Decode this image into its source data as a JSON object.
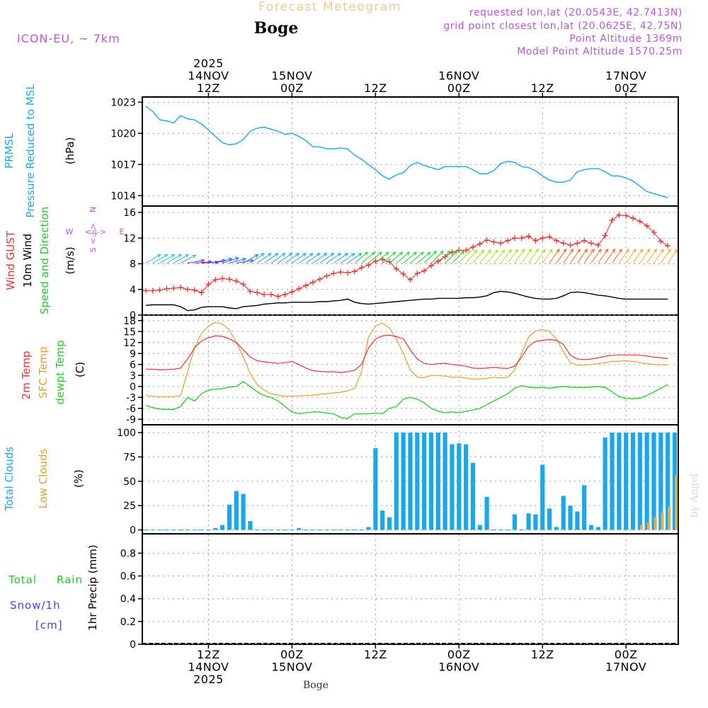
{
  "header": {
    "app_title": "Forecast Meteogram",
    "location": "Boge",
    "model": "ICON-EU, ~ 7km",
    "requested": "requested lon,lat (20.0543E, 42.7413N)",
    "grid_point": "grid point closest lon,lat (20.0625E, 42.75N)",
    "point_altitude": "Point Altitude 1369m",
    "model_altitude": "Model Point Altitude 1570.25m",
    "footer_location": "Boge",
    "watermark": "by Angel"
  },
  "colors": {
    "pressure": "#1aa7ec",
    "gust": "#ee3333",
    "wind": "#000000",
    "dir": "#22cc22",
    "temp": "#ee3333",
    "sfc": "#e0a030",
    "dewpt": "#22cc22",
    "total_clouds": "#1aa7ec",
    "low_clouds": "#e0b050",
    "rain": "#22cc22",
    "snow": "#4444ee",
    "purple": "#bb55dd"
  },
  "time_axis": {
    "hours": 77,
    "top_labels": [
      {
        "hour": 9,
        "lines": [
          "2025",
          "14NOV",
          "12Z"
        ]
      },
      {
        "hour": 21,
        "lines": [
          "15NOV",
          "00Z"
        ]
      },
      {
        "hour": 33,
        "lines": [
          "12Z"
        ]
      },
      {
        "hour": 45,
        "lines": [
          "16NOV",
          "00Z"
        ]
      },
      {
        "hour": 57,
        "lines": [
          "12Z"
        ]
      },
      {
        "hour": 69,
        "lines": [
          "17NOV",
          "00Z"
        ]
      }
    ],
    "bottom_labels": [
      {
        "hour": 9,
        "lines": [
          "12Z",
          "14NOV",
          "2025"
        ]
      },
      {
        "hour": 21,
        "lines": [
          "00Z",
          "15NOV"
        ]
      },
      {
        "hour": 33,
        "lines": [
          "12Z"
        ]
      },
      {
        "hour": 45,
        "lines": [
          "00Z",
          "16NOV"
        ]
      },
      {
        "hour": 57,
        "lines": [
          "12Z"
        ]
      },
      {
        "hour": 69,
        "lines": [
          "00Z",
          "17NOV"
        ]
      }
    ]
  },
  "panels": {
    "pressure": {
      "label1": "PRMSL",
      "label2": "Pressure Reduced to MSL",
      "unit": "(hPa)",
      "ticks": [
        "1014",
        "1017",
        "1020",
        "1023"
      ]
    },
    "wind": {
      "gust_label": "Wind GUST",
      "wind_label": "10m Wind",
      "dir_label": "Speed and Direction",
      "unit": "(m/s)",
      "compass_w": "W",
      "compass_e": "E",
      "compass_n": "N",
      "compass_s": "S",
      "compass_h": "<-|->",
      "compass_v": "<-|->",
      "ticks": [
        "0",
        "4",
        "8",
        "12",
        "16"
      ]
    },
    "temp": {
      "t2m_label": "2m Temp",
      "sfc_label": "SFC Temp",
      "dew_label": "dewpt Temp",
      "unit": "(C)",
      "ticks": [
        "-9",
        "-6",
        "-3",
        "0",
        "3",
        "6",
        "9",
        "12",
        "15",
        "18"
      ]
    },
    "clouds": {
      "total_label": "Total Clouds",
      "low_label": "Low Clouds",
      "unit": "(%)",
      "ticks": [
        "0",
        "25",
        "50",
        "75",
        "100"
      ]
    },
    "precip": {
      "rain_label_a": "Total",
      "rain_label_b": "Rain",
      "snow_label": "Snow/1h",
      "snow_unit": "[cm]",
      "unit_label": "1hr Precip (mm)",
      "ticks": [
        "0",
        "0.2",
        "0.4",
        "0.6",
        "0.8"
      ]
    }
  },
  "chart_data": [
    {
      "type": "line",
      "title": "PRMSL Pressure Reduced to MSL",
      "ylabel": "hPa",
      "ylim": [
        1013,
        1023.5
      ],
      "x_start_hour": 0,
      "x_step_hours": 1,
      "series": [
        {
          "name": "PRMSL",
          "values": [
            1022.6,
            1022.1,
            1021.3,
            1021.2,
            1021.0,
            1021.7,
            1021.4,
            1021.3,
            1020.9,
            1020.3,
            1019.7,
            1019.1,
            1018.9,
            1019.0,
            1019.4,
            1020.2,
            1020.5,
            1020.6,
            1020.4,
            1020.2,
            1019.9,
            1020.0,
            1019.7,
            1019.3,
            1018.7,
            1018.7,
            1018.5,
            1018.5,
            1018.6,
            1018.5,
            1017.9,
            1017.5,
            1017.0,
            1016.5,
            1015.9,
            1015.6,
            1016.0,
            1016.2,
            1016.9,
            1017.2,
            1016.9,
            1016.7,
            1016.5,
            1016.8,
            1016.8,
            1016.8,
            1016.8,
            1016.5,
            1016.1,
            1016.1,
            1016.4,
            1017.1,
            1017.3,
            1017.2,
            1016.8,
            1016.7,
            1016.4,
            1015.9,
            1015.5,
            1015.3,
            1015.3,
            1015.5,
            1016.3,
            1016.5,
            1016.6,
            1016.6,
            1016.3,
            1015.9,
            1015.9,
            1015.7,
            1015.4,
            1014.9,
            1014.4,
            1014.2,
            1014.0,
            1013.8
          ]
        }
      ]
    },
    {
      "type": "line",
      "title": "Wind GUST / 10m Wind Speed and Direction",
      "ylabel": "m/s",
      "ylim": [
        0,
        17
      ],
      "x_start_hour": 0,
      "x_step_hours": 1,
      "series": [
        {
          "name": "Wind GUST",
          "marker": "+",
          "values": [
            3.8,
            3.8,
            3.9,
            4.1,
            4.2,
            4.3,
            4.0,
            3.9,
            3.5,
            4.8,
            5.5,
            5.7,
            5.6,
            5.3,
            4.8,
            3.7,
            3.5,
            3.2,
            3.2,
            2.9,
            3.2,
            3.6,
            4.1,
            4.6,
            5.1,
            5.6,
            6.1,
            6.5,
            6.7,
            6.6,
            6.8,
            7.4,
            7.8,
            8.4,
            8.7,
            8.3,
            7.2,
            6.4,
            5.5,
            6.5,
            6.9,
            7.7,
            8.4,
            9.1,
            9.8,
            10.1,
            10.1,
            10.6,
            11.1,
            11.7,
            11.4,
            11.2,
            11.6,
            12.0,
            12.0,
            12.3,
            11.6,
            12.0,
            12.2,
            11.6,
            11.2,
            10.9,
            11.2,
            11.6,
            11.2,
            10.9,
            12.4,
            14.8,
            15.6,
            15.5,
            15.1,
            14.6,
            13.9,
            12.9,
            11.5,
            10.8
          ]
        },
        {
          "name": "10m Wind",
          "values": [
            1.5,
            1.6,
            1.6,
            1.6,
            1.6,
            1.3,
            0.7,
            0.8,
            1.2,
            1.3,
            1.3,
            1.3,
            1.1,
            1.0,
            1.3,
            1.4,
            1.5,
            1.7,
            1.8,
            1.9,
            1.9,
            2.0,
            2.0,
            2.0,
            2.0,
            2.1,
            2.1,
            2.2,
            2.3,
            2.5,
            2.0,
            1.8,
            1.7,
            1.8,
            1.9,
            2.0,
            2.1,
            2.2,
            2.3,
            2.4,
            2.5,
            2.5,
            2.6,
            2.6,
            2.6,
            2.6,
            2.7,
            2.7,
            2.8,
            3.0,
            3.5,
            3.7,
            3.6,
            3.4,
            3.1,
            2.8,
            2.6,
            2.5,
            2.5,
            2.6,
            3.0,
            3.5,
            3.6,
            3.5,
            3.3,
            3.1,
            3.0,
            2.8,
            2.6,
            2.5,
            2.5,
            2.5,
            2.5,
            2.5,
            2.5,
            2.5
          ]
        },
        {
          "name": "Direction (deg to)",
          "values": [
            60,
            60,
            60,
            60,
            60,
            62,
            80,
            85,
            87,
            80,
            75,
            72,
            75,
            80,
            60,
            55,
            55,
            55,
            55,
            55,
            55,
            55,
            55,
            55,
            55,
            55,
            55,
            55,
            55,
            55,
            50,
            50,
            50,
            50,
            50,
            50,
            50,
            50,
            50,
            50,
            45,
            45,
            45,
            45,
            45,
            42,
            40,
            40,
            40,
            40,
            40,
            38,
            36,
            35,
            35,
            35,
            35,
            35,
            35,
            35,
            35,
            35,
            35,
            35,
            35,
            35,
            35,
            35,
            35,
            35,
            35,
            35,
            35,
            35,
            35,
            35
          ]
        }
      ]
    },
    {
      "type": "line",
      "title": "2m Temp / SFC Temp / dewpt Temp",
      "ylabel": "C",
      "ylim": [
        -10.5,
        19.5
      ],
      "x_start_hour": 0,
      "x_step_hours": 1,
      "series": [
        {
          "name": "2m Temp",
          "values": [
            4.7,
            4.7,
            4.5,
            4.6,
            4.7,
            5.0,
            7.5,
            10.5,
            12.5,
            13.3,
            13.8,
            13.7,
            13.0,
            12.0,
            10.0,
            8.0,
            7.0,
            6.7,
            6.5,
            6.3,
            6.5,
            6.8,
            6.0,
            5.0,
            4.3,
            4.1,
            4.0,
            4.0,
            3.8,
            4.0,
            4.4,
            6.0,
            10.5,
            13.0,
            13.8,
            14.0,
            13.6,
            13.0,
            10.0,
            7.5,
            6.3,
            6.0,
            6.2,
            6.3,
            6.0,
            5.8,
            5.5,
            5.0,
            4.9,
            5.0,
            5.2,
            5.0,
            4.9,
            5.5,
            8.0,
            11.0,
            12.3,
            12.6,
            12.8,
            12.6,
            11.5,
            8.5,
            7.5,
            7.3,
            7.5,
            7.8,
            8.2,
            8.5,
            8.6,
            8.6,
            8.6,
            8.5,
            8.3,
            8.0,
            7.8,
            7.6
          ]
        },
        {
          "name": "SFC Temp",
          "values": [
            -2.5,
            -2.7,
            -2.8,
            -2.8,
            -2.8,
            -2.5,
            4.0,
            10.5,
            14.5,
            16.5,
            17.5,
            17.0,
            15.5,
            12.0,
            8.0,
            3.5,
            0.5,
            -1.0,
            -2.0,
            -2.4,
            -2.7,
            -2.7,
            -2.6,
            -2.5,
            -2.4,
            -2.2,
            -2.0,
            -1.8,
            -1.6,
            -1.2,
            -0.5,
            4.0,
            13.5,
            16.5,
            17.3,
            16.0,
            13.0,
            9.0,
            4.5,
            2.5,
            2.4,
            3.0,
            3.0,
            2.8,
            2.5,
            2.5,
            2.3,
            2.0,
            2.0,
            2.2,
            2.5,
            2.3,
            2.5,
            4.5,
            9.0,
            13.5,
            15.2,
            15.5,
            15.0,
            13.0,
            9.5,
            6.5,
            5.8,
            5.8,
            6.0,
            6.2,
            6.5,
            6.8,
            6.9,
            7.0,
            6.8,
            6.5,
            6.2,
            6.0,
            5.9,
            5.9
          ]
        },
        {
          "name": "dewpt Temp",
          "values": [
            -5.2,
            -5.8,
            -6.2,
            -6.3,
            -6.3,
            -5.5,
            -3.0,
            -4.0,
            -2.0,
            -1.0,
            -0.8,
            -0.6,
            -0.2,
            0.0,
            1.3,
            0.0,
            -1.5,
            -2.5,
            -3.0,
            -4.0,
            -5.5,
            -7.0,
            -7.5,
            -7.2,
            -7.0,
            -7.0,
            -7.3,
            -7.5,
            -8.5,
            -8.8,
            -7.5,
            -7.5,
            -7.5,
            -7.3,
            -7.5,
            -6.0,
            -5.5,
            -3.5,
            -3.0,
            -3.5,
            -4.5,
            -6.0,
            -6.8,
            -7.2,
            -7.0,
            -7.2,
            -6.8,
            -6.5,
            -6.0,
            -5.0,
            -4.0,
            -3.0,
            -2.0,
            -0.5,
            0.2,
            -0.2,
            -0.4,
            -0.3,
            -0.5,
            -0.2,
            0.0,
            -0.2,
            -0.3,
            -0.3,
            -0.2,
            0.0,
            -0.3,
            -1.5,
            -2.8,
            -3.3,
            -3.4,
            -3.2,
            -2.5,
            -1.5,
            -0.5,
            0.5
          ]
        }
      ]
    },
    {
      "type": "bar",
      "title": "Total Clouds / Low Clouds",
      "ylabel": "%",
      "ylim": [
        -4,
        108
      ],
      "x_start_hour": 0,
      "x_step_hours": 1,
      "series": [
        {
          "name": "Total Clouds",
          "values": [
            0,
            0,
            0,
            0,
            0,
            0,
            0,
            0,
            0,
            0,
            2,
            5,
            26,
            40,
            37,
            9,
            0,
            0,
            0,
            0,
            0,
            0,
            2,
            0,
            0,
            0,
            0,
            0,
            0,
            0,
            0,
            0,
            3,
            84,
            20,
            13,
            100,
            100,
            100,
            100,
            100,
            100,
            100,
            100,
            88,
            89,
            88,
            69,
            5,
            34,
            0,
            0,
            0,
            16,
            0,
            17,
            16,
            67,
            22,
            3,
            35,
            25,
            19,
            46,
            5,
            3,
            95,
            100,
            100,
            100,
            100,
            100,
            100,
            100,
            100,
            100,
            100
          ]
        },
        {
          "name": "Low Clouds",
          "values": [
            0,
            0,
            0,
            0,
            0,
            0,
            0,
            0,
            0,
            0,
            0,
            0,
            0,
            0,
            0,
            0,
            0,
            0,
            0,
            0,
            0,
            0,
            0,
            0,
            0,
            0,
            0,
            0,
            0,
            0,
            0,
            0,
            0,
            0,
            0,
            0,
            0,
            0,
            0,
            0,
            0,
            0,
            0,
            0,
            0,
            0,
            0,
            0,
            0,
            0,
            0,
            0,
            0,
            0,
            0,
            0,
            0,
            0,
            0,
            0,
            0,
            0,
            0,
            0,
            0,
            0,
            0,
            0,
            0,
            0,
            0,
            5,
            8,
            13,
            18,
            24,
            56
          ]
        }
      ]
    },
    {
      "type": "line",
      "title": "1hr Precip",
      "ylabel": "1hr Precip (mm)",
      "ylim": [
        0,
        0.97
      ],
      "x_start_hour": 0,
      "x_step_hours": 1,
      "series": [
        {
          "name": "Total Rain",
          "values": [
            0,
            0,
            0,
            0,
            0,
            0,
            0,
            0,
            0,
            0,
            0,
            0,
            0,
            0,
            0,
            0,
            0,
            0,
            0,
            0,
            0,
            0,
            0,
            0,
            0,
            0,
            0,
            0,
            0,
            0,
            0,
            0,
            0,
            0,
            0,
            0,
            0,
            0,
            0,
            0,
            0,
            0,
            0,
            0,
            0,
            0,
            0,
            0,
            0,
            0,
            0,
            0,
            0,
            0,
            0,
            0,
            0,
            0,
            0,
            0,
            0,
            0,
            0,
            0,
            0,
            0,
            0,
            0,
            0,
            0,
            0,
            0,
            0,
            0,
            0,
            0
          ]
        },
        {
          "name": "Snow/1h",
          "values": [
            0,
            0,
            0,
            0,
            0,
            0,
            0,
            0,
            0,
            0,
            0,
            0,
            0,
            0,
            0,
            0,
            0,
            0,
            0,
            0,
            0,
            0,
            0,
            0,
            0,
            0,
            0,
            0,
            0,
            0,
            0,
            0,
            0,
            0,
            0,
            0,
            0,
            0,
            0,
            0,
            0,
            0,
            0,
            0,
            0,
            0,
            0,
            0,
            0,
            0,
            0,
            0,
            0,
            0,
            0,
            0,
            0,
            0,
            0,
            0,
            0,
            0,
            0,
            0,
            0,
            0,
            0,
            0,
            0,
            0,
            0,
            0,
            0,
            0,
            0,
            0
          ]
        }
      ]
    }
  ]
}
